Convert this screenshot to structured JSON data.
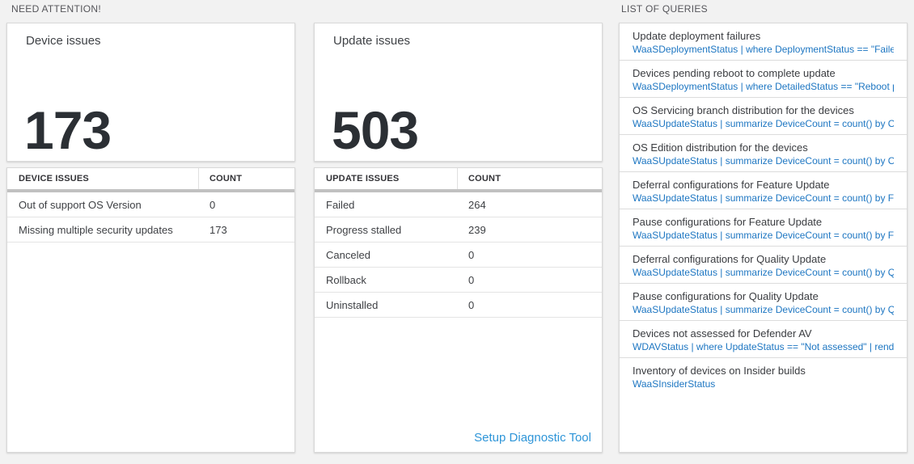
{
  "colors": {
    "page_background": "#f2f2f2",
    "panel_background": "#ffffff",
    "panel_border": "#d9d9d9",
    "big_number_text": "#2b2f34",
    "query_link_blue": "#1d76c2",
    "footer_link_blue": "#2e95d8",
    "grid_divider_gray": "#c1c1c1"
  },
  "need_attention": {
    "section_title": "NEED ATTENTION!",
    "device_card": {
      "title": "Device issues",
      "value": "173"
    },
    "device_table": {
      "columns": [
        "DEVICE ISSUES",
        "COUNT"
      ],
      "rows": [
        {
          "label": "Out of support OS Version",
          "count": "0"
        },
        {
          "label": "Missing multiple security updates",
          "count": "173"
        }
      ]
    },
    "update_card": {
      "title": "Update issues",
      "value": "503"
    },
    "update_table": {
      "columns": [
        "UPDATE ISSUES",
        "COUNT"
      ],
      "rows": [
        {
          "label": "Failed",
          "count": "264"
        },
        {
          "label": "Progress stalled",
          "count": "239"
        },
        {
          "label": "Canceled",
          "count": "0"
        },
        {
          "label": "Rollback",
          "count": "0"
        },
        {
          "label": "Uninstalled",
          "count": "0"
        }
      ],
      "footer_link": "Setup Diagnostic Tool"
    }
  },
  "queries": {
    "section_title": "LIST OF QUERIES",
    "items": [
      {
        "title": "Update deployment failures",
        "query": "WaaSDeploymentStatus | where DeploymentStatus == \"Failed\" |..."
      },
      {
        "title": "Devices pending reboot to complete update",
        "query": "WaaSDeploymentStatus | where DetailedStatus == \"Reboot pend..."
      },
      {
        "title": "OS Servicing branch distribution for the devices",
        "query": "WaaSUpdateStatus | summarize DeviceCount = count() by OSSer..."
      },
      {
        "title": "OS Edition distribution for the devices",
        "query": "WaaSUpdateStatus | summarize DeviceCount = count() by OSEdit..."
      },
      {
        "title": "Deferral configurations for Feature Update",
        "query": "WaaSUpdateStatus | summarize DeviceCount = count() by Featur..."
      },
      {
        "title": "Pause configurations for Feature Update",
        "query": "WaaSUpdateStatus | summarize DeviceCount = count() by Featur..."
      },
      {
        "title": "Deferral configurations for Quality Update",
        "query": "WaaSUpdateStatus | summarize DeviceCount = count() by Qualit..."
      },
      {
        "title": "Pause configurations for Quality Update",
        "query": "WaaSUpdateStatus | summarize DeviceCount = count() by Qualit..."
      },
      {
        "title": "Devices not assessed for Defender AV",
        "query": "WDAVStatus | where UpdateStatus == \"Not assessed\" | render ta..."
      },
      {
        "title": "Inventory of devices on Insider builds",
        "query": "WaaSInsiderStatus"
      }
    ]
  }
}
